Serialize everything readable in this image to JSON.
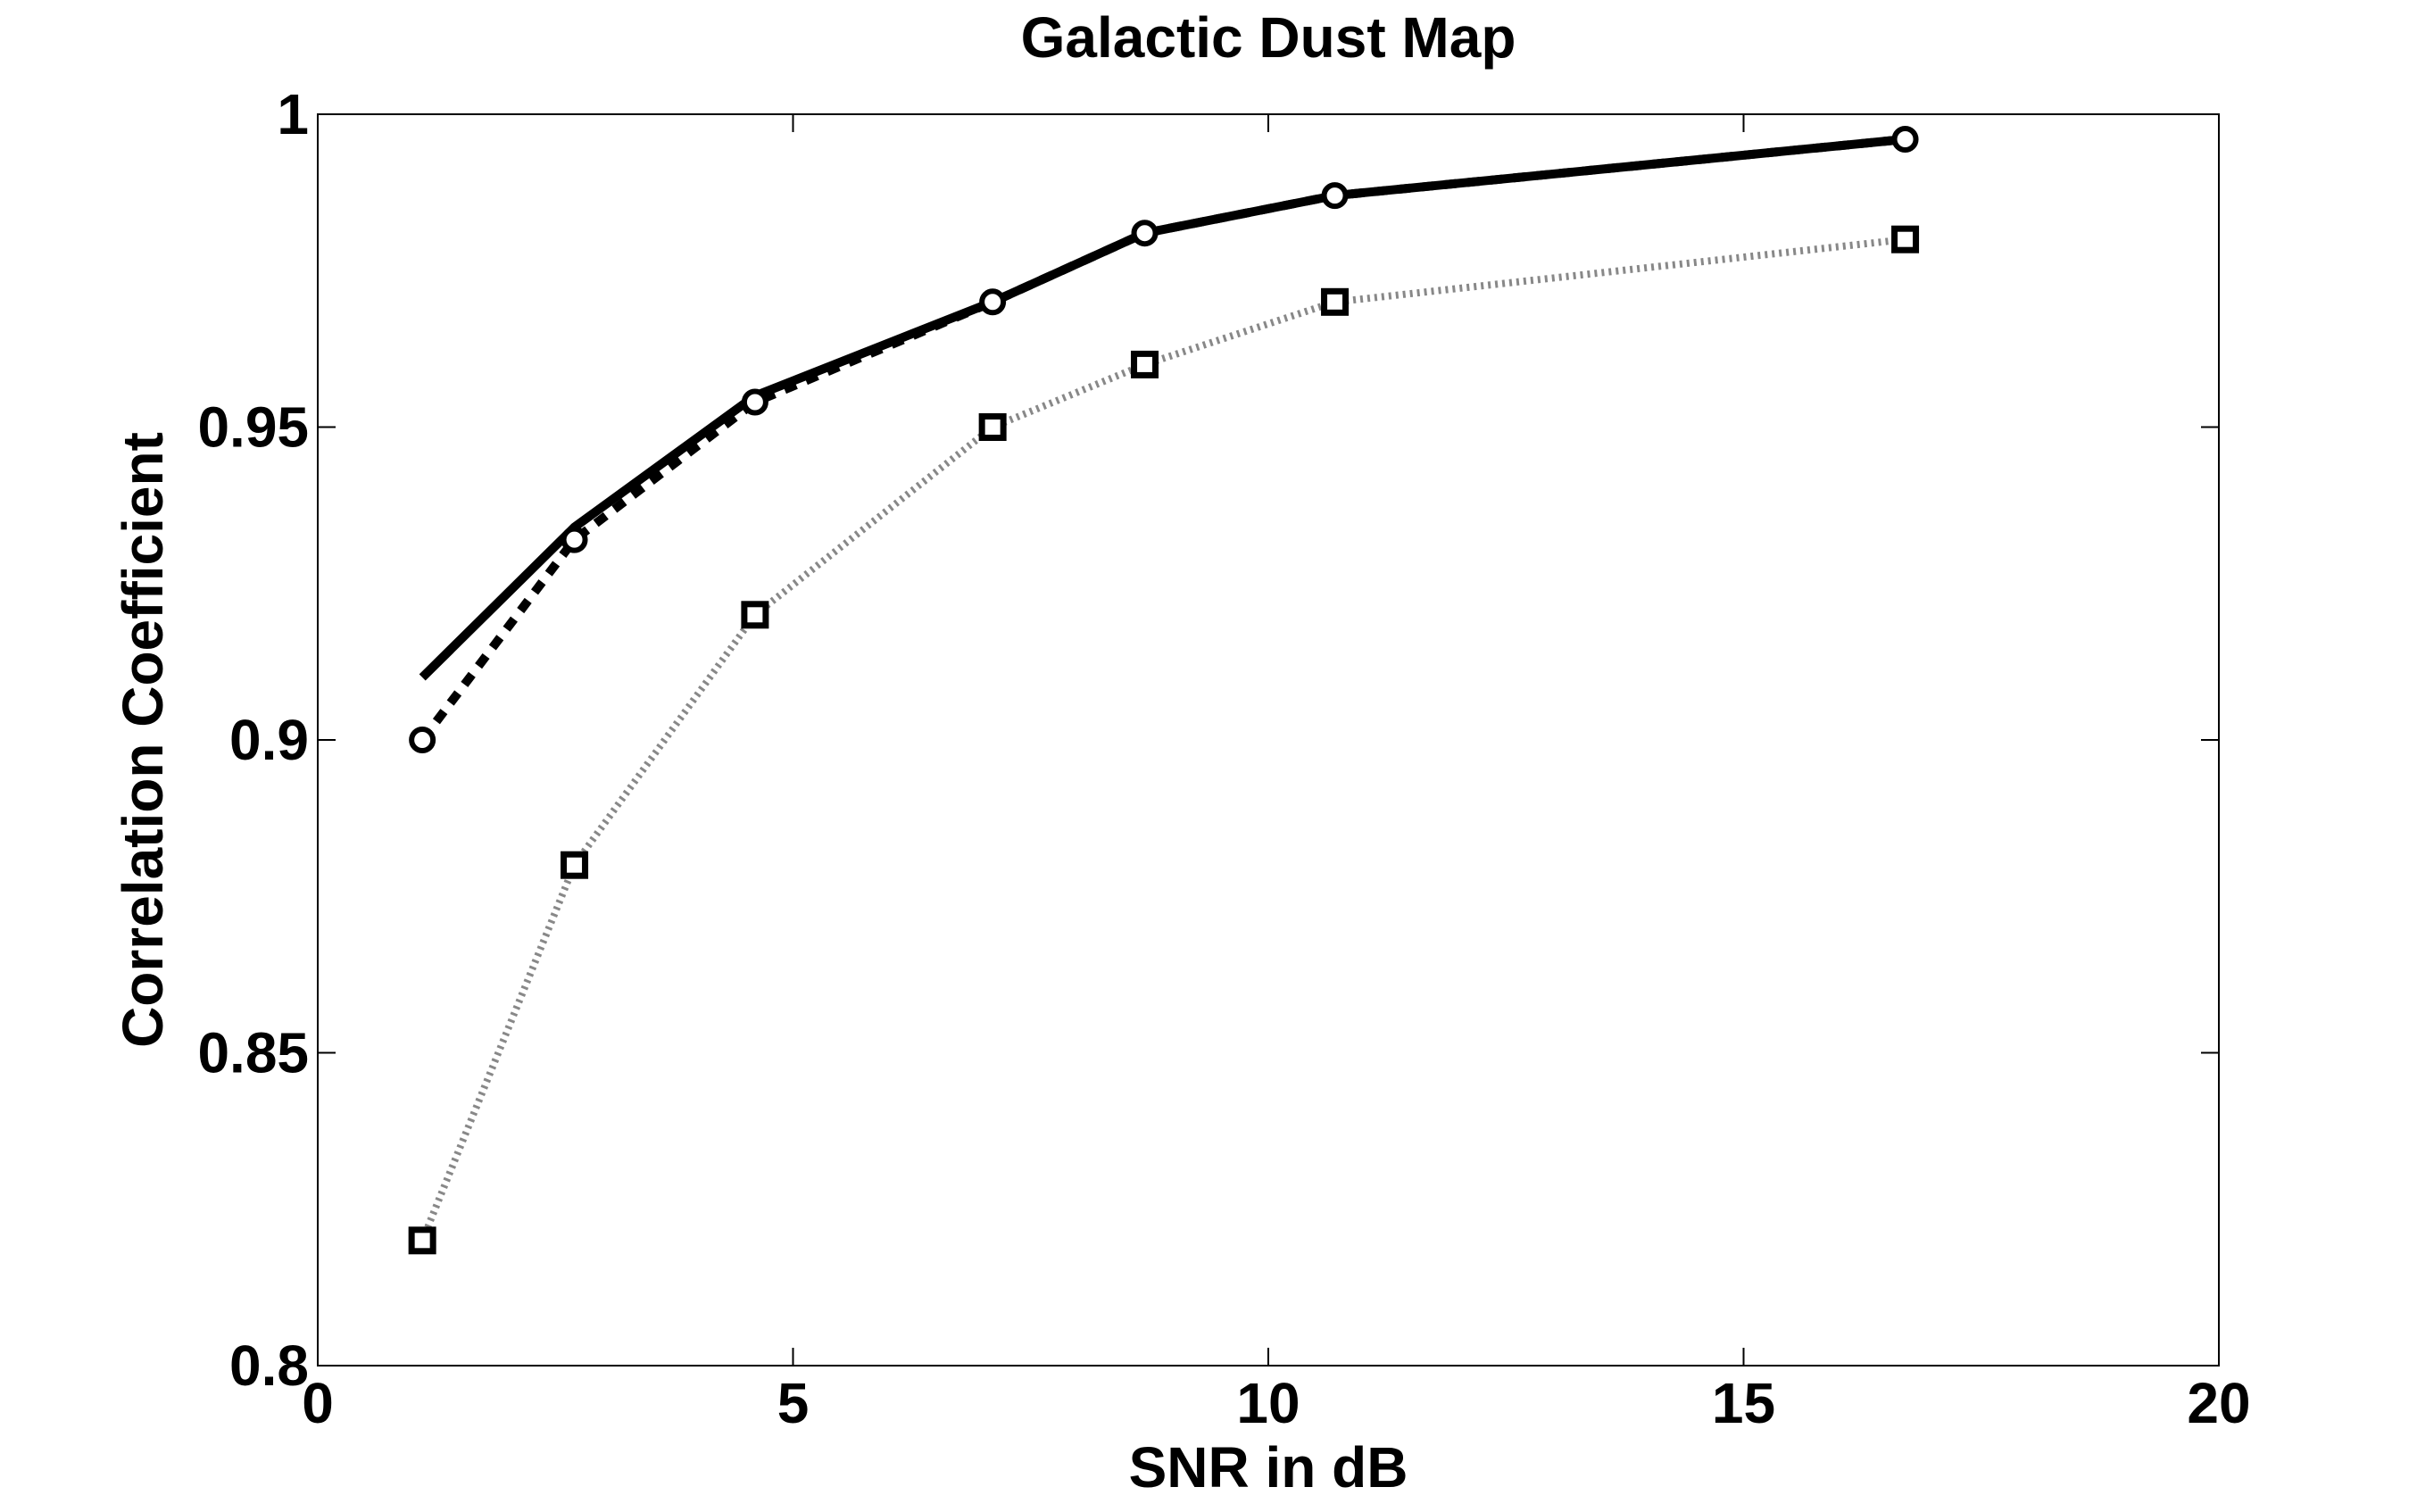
{
  "chart_data": {
    "type": "line",
    "title": "Galactic Dust Map",
    "xlabel": "SNR in dB",
    "ylabel": "Correlation Coefficient",
    "xlim": [
      0,
      20
    ],
    "ylim": [
      0.8,
      1.0
    ],
    "xticks": [
      0,
      5,
      10,
      15,
      20
    ],
    "xtick_labels": [
      "0",
      "5",
      "10",
      "15",
      "20"
    ],
    "yticks": [
      0.8,
      0.85,
      0.9,
      0.95,
      1.0
    ],
    "ytick_labels": [
      "0.8",
      "0.85",
      "0.9",
      "0.95",
      "1"
    ],
    "grid": false,
    "legend": "none",
    "series": [
      {
        "line_style": "solid",
        "marker": "none",
        "color": "#000000",
        "x": [
          1.1,
          2.7,
          4.6,
          7.1,
          8.7,
          10.7,
          16.7
        ],
        "y": [
          0.91,
          0.934,
          0.955,
          0.97,
          0.981,
          0.987,
          0.996
        ]
      },
      {
        "line_style": "dashed",
        "marker": "circle",
        "color": "#000000",
        "x": [
          1.1,
          2.7,
          4.6,
          7.1,
          8.7,
          10.7,
          16.7
        ],
        "y": [
          0.9,
          0.932,
          0.954,
          0.97,
          0.981,
          0.987,
          0.996
        ]
      },
      {
        "line_style": "dotted",
        "marker": "square",
        "color": "#888888",
        "x": [
          1.1,
          2.7,
          4.6,
          7.1,
          8.7,
          10.7,
          16.7
        ],
        "y": [
          0.82,
          0.88,
          0.92,
          0.95,
          0.96,
          0.97,
          0.98
        ]
      }
    ]
  }
}
